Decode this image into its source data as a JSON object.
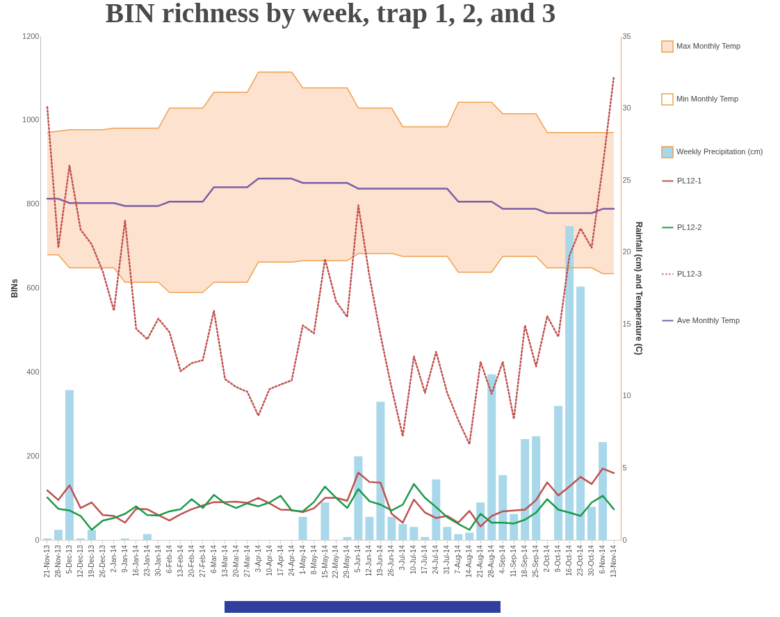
{
  "chart_data": {
    "type": "line",
    "title": "BIN richness by week, trap 1, 2, and 3",
    "ylabel": "BINs",
    "y2label": "Rainfall (cm) and Temperature (C)",
    "categories": [
      "21-Nov-13",
      "28-Nov-13",
      "5-Dec-13",
      "12-Dec-13",
      "19-Dec-13",
      "26-Dec-13",
      "2-Jan-14",
      "9-Jan-14",
      "16-Jan-14",
      "23-Jan-14",
      "30-Jan-14",
      "6-Feb-14",
      "13-Feb-14",
      "20-Feb-14",
      "27-Feb-14",
      "6-Mar-14",
      "13-Mar-14",
      "20-Mar-14",
      "27-Mar-14",
      "3-Apr-14",
      "10-Apr-14",
      "17-Apr-14",
      "24-Apr-14",
      "1-May-14",
      "8-May-14",
      "15-May-14",
      "22-May-14",
      "29-May-14",
      "5-Jun-14",
      "12-Jun-14",
      "19-Jun-14",
      "26-Jun-14",
      "3-Jul-14",
      "10-Jul-14",
      "17-Jul-14",
      "24-Jul-14",
      "31-Jul-14",
      "7-Aug-14",
      "14-Aug-14",
      "21-Aug-14",
      "28-Aug-14",
      "4-Sep-14",
      "11-Sep-14",
      "18-Sep-14",
      "25-Sep-14",
      "2-Oct-14",
      "9-Oct-14",
      "16-Oct-14",
      "23-Oct-14",
      "30-Oct-14",
      "6-Nov-14",
      "13-Nov-14"
    ],
    "ylim": [
      0,
      1200
    ],
    "yticks": [
      0,
      200,
      400,
      600,
      800,
      {
        "value": 1000,
        "label": "1000"
      },
      {
        "value": 1200,
        "label": "1200"
      }
    ],
    "y2lim": [
      0,
      35
    ],
    "y2ticks": [
      0,
      5,
      10,
      15,
      20,
      25,
      30,
      35
    ],
    "legend": "right",
    "series": [
      {
        "name": "Max Monthly Temp",
        "type": "area",
        "axis": "y2",
        "color": "#fde3cf",
        "values": [
          28.3,
          28.4,
          28.5,
          28.5,
          28.5,
          28.5,
          28.6,
          28.6,
          28.6,
          28.6,
          28.6,
          30.0,
          30.0,
          30.0,
          30.0,
          31.1,
          31.1,
          31.1,
          31.1,
          32.5,
          32.5,
          32.5,
          32.5,
          31.4,
          31.4,
          31.4,
          31.4,
          31.4,
          30.0,
          30.0,
          30.0,
          30.0,
          28.7,
          28.7,
          28.7,
          28.7,
          28.7,
          30.4,
          30.4,
          30.4,
          30.4,
          29.6,
          29.6,
          29.6,
          29.6,
          28.3,
          28.3,
          28.3,
          28.3,
          28.3,
          28.3,
          28.3
        ]
      },
      {
        "name": "Min Monthly Temp",
        "type": "area",
        "axis": "y2",
        "color": "#ffffff",
        "values": [
          19.8,
          19.8,
          18.9,
          18.9,
          18.9,
          18.9,
          18.9,
          17.9,
          17.9,
          17.9,
          17.9,
          17.2,
          17.2,
          17.2,
          17.2,
          17.9,
          17.9,
          17.9,
          17.9,
          19.3,
          19.3,
          19.3,
          19.3,
          19.4,
          19.4,
          19.4,
          19.4,
          19.4,
          19.9,
          19.9,
          19.9,
          19.9,
          19.7,
          19.7,
          19.7,
          19.7,
          19.7,
          18.6,
          18.6,
          18.6,
          18.6,
          19.7,
          19.7,
          19.7,
          19.7,
          18.9,
          18.9,
          18.9,
          18.9,
          18.9,
          18.5,
          18.5
        ]
      },
      {
        "name": "Weekly Precipitation (cm)",
        "type": "bar",
        "axis": "y2",
        "color": "#a8d8ea",
        "values": [
          0.1,
          0.7,
          10.4,
          0.1,
          0.7,
          0,
          0,
          0.1,
          0,
          0.4,
          0,
          0,
          0,
          0,
          0,
          0,
          0,
          0,
          0,
          0,
          0,
          0,
          0,
          1.6,
          0,
          2.6,
          0,
          0.2,
          5.8,
          1.6,
          9.6,
          1.6,
          1.1,
          0.9,
          0.2,
          4.2,
          0.9,
          0.4,
          0.5,
          2.6,
          11.5,
          4.5,
          1.8,
          7.0,
          7.2,
          0,
          9.3,
          21.8,
          17.6,
          2.3,
          6.8,
          0
        ]
      },
      {
        "name": "PL12-1",
        "color": "#c0504d",
        "values": [
          118,
          95,
          130,
          76,
          89,
          59,
          57,
          41,
          74,
          73,
          59,
          46,
          61,
          73,
          82,
          90,
          90,
          91,
          88,
          100,
          87,
          72,
          71,
          66,
          75,
          100,
          100,
          93,
          160,
          138,
          136,
          62,
          41,
          96,
          65,
          52,
          57,
          41,
          69,
          32,
          57,
          68,
          70,
          72,
          95,
          137,
          106,
          127,
          150,
          133,
          170,
          159
        ]
      },
      {
        "name": "PL12-2",
        "color": "#1a9a48",
        "values": [
          101,
          74,
          70,
          57,
          24,
          46,
          52,
          62,
          80,
          59,
          58,
          68,
          73,
          97,
          76,
          107,
          87,
          76,
          87,
          80,
          89,
          105,
          70,
          68,
          90,
          127,
          100,
          76,
          121,
          92,
          84,
          70,
          84,
          133,
          100,
          78,
          54,
          38,
          24,
          62,
          41,
          41,
          39,
          48,
          65,
          97,
          72,
          65,
          57,
          89,
          105,
          73
        ]
      },
      {
        "name": "PL12-3",
        "line_style": "dotted",
        "color": "#c0504d",
        "values": [
          1031,
          696,
          892,
          739,
          704,
          639,
          546,
          761,
          503,
          478,
          527,
          495,
          402,
          421,
          428,
          546,
          383,
          364,
          353,
          296,
          359,
          370,
          380,
          511,
          492,
          669,
          568,
          531,
          797,
          628,
          487,
          361,
          247,
          437,
          350,
          448,
          350,
          285,
          228,
          424,
          348,
          424,
          288,
          511,
          413,
          533,
          484,
          677,
          742,
          696,
          889,
          1104
        ]
      },
      {
        "name": "Ave Monthly Temp",
        "axis": "y2",
        "color": "#7b5ea7",
        "values": [
          23.7,
          23.7,
          23.4,
          23.4,
          23.4,
          23.4,
          23.4,
          23.2,
          23.2,
          23.2,
          23.2,
          23.5,
          23.5,
          23.5,
          23.5,
          24.5,
          24.5,
          24.5,
          24.5,
          25.1,
          25.1,
          25.1,
          25.1,
          24.8,
          24.8,
          24.8,
          24.8,
          24.8,
          24.4,
          24.4,
          24.4,
          24.4,
          24.4,
          24.4,
          24.4,
          24.4,
          24.4,
          23.5,
          23.5,
          23.5,
          23.5,
          23.0,
          23.0,
          23.0,
          23.0,
          22.7,
          22.7,
          22.7,
          22.7,
          22.7,
          23.0,
          23.0
        ]
      }
    ]
  }
}
